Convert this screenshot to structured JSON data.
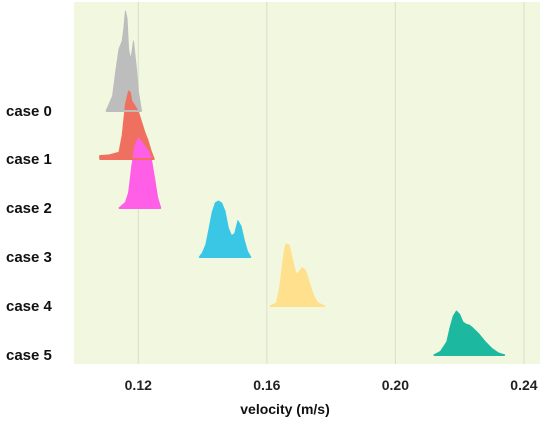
{
  "chart_data": {
    "type": "area",
    "title": "",
    "xlabel": "velocity  (m/s)",
    "ylabel": "",
    "xlim": [
      0.1,
      0.245
    ],
    "x_ticks": [
      0.12,
      0.16,
      0.2,
      0.24
    ],
    "x_tick_labels": [
      "0.12",
      "0.16",
      "0.20",
      "0.24"
    ],
    "categories": [
      "case  0",
      "case  1",
      "case  2",
      "case  3",
      "case  4",
      "case  5"
    ],
    "grid": "vertical",
    "background": "#f1f8df",
    "series": [
      {
        "category": "case  0",
        "color": "#bdbdbd",
        "x": [
          0.11,
          0.112,
          0.113,
          0.114,
          0.115,
          0.1155,
          0.116,
          0.1165,
          0.117,
          0.1175,
          0.118,
          0.1185,
          0.119,
          0.1195,
          0.12,
          0.121
        ],
        "density": [
          0.0,
          0.15,
          0.4,
          0.62,
          0.7,
          0.82,
          1.0,
          0.93,
          0.62,
          0.52,
          0.58,
          0.7,
          0.55,
          0.4,
          0.2,
          0.0
        ]
      },
      {
        "category": "case  1",
        "color": "#f0705f",
        "x": [
          0.108,
          0.111,
          0.114,
          0.115,
          0.116,
          0.117,
          0.1175,
          0.118,
          0.119,
          0.12,
          0.121,
          0.122,
          0.123,
          0.124,
          0.125
        ],
        "density": [
          0.05,
          0.06,
          0.1,
          0.35,
          0.8,
          1.0,
          0.98,
          0.85,
          0.78,
          0.7,
          0.55,
          0.4,
          0.28,
          0.12,
          0.0
        ]
      },
      {
        "category": "case  2",
        "color": "#ff5fe6",
        "x": [
          0.114,
          0.116,
          0.117,
          0.118,
          0.119,
          0.12,
          0.1205,
          0.121,
          0.122,
          0.123,
          0.124,
          0.125,
          0.126,
          0.127
        ],
        "density": [
          0.0,
          0.08,
          0.22,
          0.6,
          0.9,
          1.0,
          0.98,
          0.95,
          0.88,
          0.82,
          0.72,
          0.45,
          0.15,
          0.0
        ]
      },
      {
        "category": "case  3",
        "color": "#3ac7e6",
        "x": [
          0.139,
          0.14,
          0.141,
          0.142,
          0.143,
          0.144,
          0.145,
          0.146,
          0.147,
          0.148,
          0.149,
          0.15,
          0.151,
          0.152,
          0.153,
          0.154,
          0.155
        ],
        "density": [
          0.0,
          0.08,
          0.22,
          0.5,
          0.8,
          0.97,
          1.0,
          0.96,
          0.82,
          0.52,
          0.38,
          0.42,
          0.65,
          0.55,
          0.3,
          0.1,
          0.0
        ]
      },
      {
        "category": "case  4",
        "color": "#ffe08c",
        "x": [
          0.161,
          0.163,
          0.164,
          0.165,
          0.1655,
          0.166,
          0.167,
          0.168,
          0.169,
          0.17,
          0.171,
          0.172,
          0.173,
          0.174,
          0.175,
          0.176,
          0.178
        ],
        "density": [
          0.0,
          0.05,
          0.3,
          0.72,
          0.92,
          1.0,
          0.98,
          0.75,
          0.52,
          0.55,
          0.62,
          0.58,
          0.42,
          0.25,
          0.12,
          0.05,
          0.0
        ]
      },
      {
        "category": "case  5",
        "color": "#1db8a0",
        "x": [
          0.212,
          0.214,
          0.216,
          0.217,
          0.218,
          0.219,
          0.22,
          0.221,
          0.222,
          0.223,
          0.224,
          0.226,
          0.228,
          0.23,
          0.232,
          0.234
        ],
        "density": [
          0.0,
          0.08,
          0.3,
          0.62,
          0.88,
          1.0,
          0.92,
          0.75,
          0.7,
          0.68,
          0.62,
          0.48,
          0.3,
          0.15,
          0.05,
          0.0
        ]
      }
    ]
  }
}
